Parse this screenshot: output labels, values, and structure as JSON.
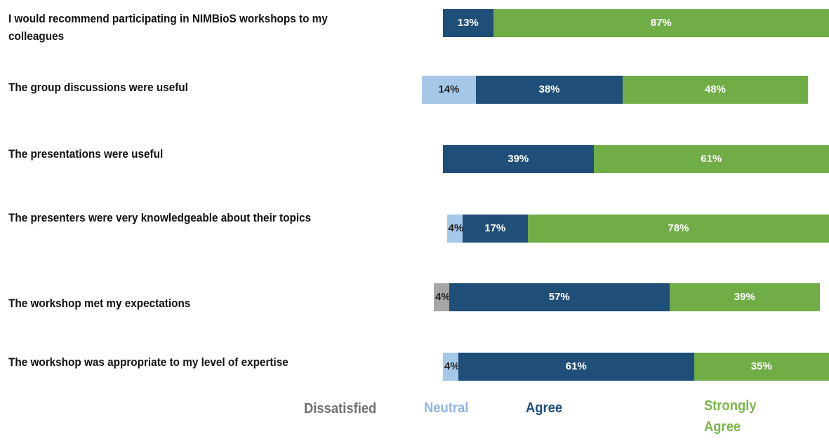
{
  "chart_data": {
    "type": "bar",
    "orientation": "horizontal",
    "stacked": true,
    "categories": [
      "I would recommend participating in NIMBioS workshops to my colleagues",
      "The group discussions were useful",
      "The presentations were useful",
      "The presenters were very knowledgeable about their topics",
      "The workshop met my expectations",
      "The workshop was appropriate to my level of expertise"
    ],
    "series": [
      {
        "name": "Dissatisfied",
        "color": "#a6a6a6",
        "values": [
          0,
          0,
          0,
          0,
          4,
          0
        ]
      },
      {
        "name": "Neutral",
        "color": "#a6c8e8",
        "values": [
          0,
          14,
          0,
          4,
          0,
          4
        ]
      },
      {
        "name": "Agree",
        "color": "#1f4e79",
        "values": [
          13,
          38,
          39,
          17,
          57,
          61
        ]
      },
      {
        "name": "Strongly Agree",
        "color": "#70ad47",
        "values": [
          87,
          48,
          61,
          78,
          39,
          35
        ]
      }
    ],
    "data_labels": [
      [
        "",
        "",
        "13%",
        "87%"
      ],
      [
        "",
        "14%",
        "38%",
        "48%"
      ],
      [
        "",
        "",
        "39%",
        "61%"
      ],
      [
        "",
        "4%",
        "17%",
        "78%"
      ],
      [
        "4%",
        "",
        "57%",
        "39%"
      ],
      [
        "",
        "4%",
        "61%",
        "35%"
      ]
    ],
    "legend_placement": "bottom",
    "grid": false
  }
}
